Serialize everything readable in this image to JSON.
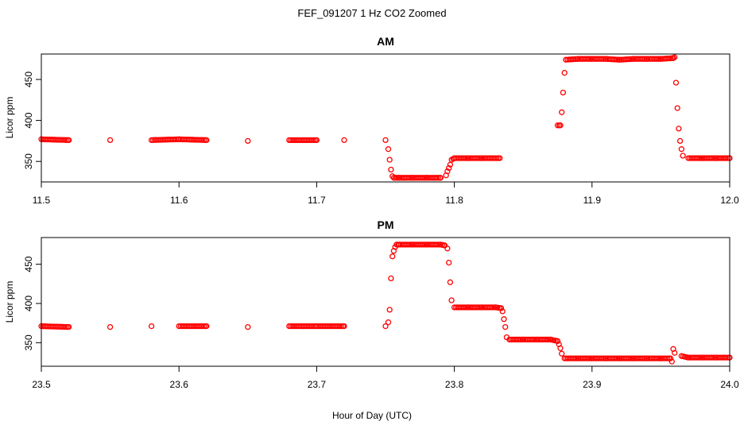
{
  "figure": {
    "title": "FEF_091207  1 Hz CO2 Zoomed",
    "xlabel": "Hour of Day (UTC)"
  },
  "chart_data": [
    {
      "type": "scatter",
      "title": "AM",
      "xlabel": "Hour of Day (UTC)",
      "ylabel": "Licor ppm",
      "xlim": [
        11.5,
        12.0
      ],
      "ylim": [
        325,
        481
      ],
      "x_ticks": [
        "11.5",
        "11.6",
        "11.7",
        "11.8",
        "11.9",
        "12.0"
      ],
      "y_ticks": [
        "350",
        "400",
        "450"
      ],
      "marker": "open-circle",
      "color": "#ff0000",
      "grid": false,
      "series": [
        {
          "x": [
            11.5,
            11.52,
            11.55,
            11.58,
            11.6,
            11.62,
            11.65,
            11.68,
            11.7,
            11.72,
            11.75,
            11.752,
            11.753,
            11.754,
            11.755,
            11.756,
            11.76,
            11.77,
            11.78,
            11.79,
            11.794,
            11.795,
            11.796,
            11.797,
            11.798,
            11.8,
            11.81,
            11.82,
            11.833,
            11.875,
            11.877,
            11.878,
            11.879,
            11.88,
            11.881,
            11.89,
            11.9,
            11.91,
            11.92,
            11.93,
            11.94,
            11.95,
            11.959,
            11.96,
            11.961,
            11.962,
            11.963,
            11.964,
            11.965,
            11.966,
            11.97,
            11.98,
            11.99,
            12.0
          ],
          "y": [
            377,
            376,
            376,
            376,
            377,
            376,
            375,
            376,
            376,
            376,
            376,
            365,
            352,
            340,
            332,
            330,
            330,
            330,
            330,
            330,
            333,
            338,
            342,
            346,
            352,
            354,
            354,
            354,
            354,
            394,
            394,
            410,
            434,
            458,
            474,
            475,
            475,
            475,
            474,
            475,
            475,
            475,
            476,
            477,
            446,
            415,
            390,
            375,
            365,
            357,
            354,
            354,
            354,
            354
          ]
        }
      ]
    },
    {
      "type": "scatter",
      "title": "PM",
      "xlabel": "Hour of Day (UTC)",
      "ylabel": "Licor ppm",
      "xlim": [
        23.5,
        24.0
      ],
      "ylim": [
        320,
        484
      ],
      "x_ticks": [
        "23.5",
        "23.6",
        "23.7",
        "23.8",
        "23.9",
        "24.0"
      ],
      "y_ticks": [
        "350",
        "400",
        "450"
      ],
      "marker": "open-circle",
      "color": "#ff0000",
      "grid": false,
      "series": [
        {
          "x": [
            23.5,
            23.52,
            23.55,
            23.58,
            23.6,
            23.62,
            23.65,
            23.68,
            23.7,
            23.72,
            23.75,
            23.752,
            23.753,
            23.754,
            23.755,
            23.756,
            23.757,
            23.758,
            23.76,
            23.77,
            23.78,
            23.79,
            23.793,
            23.795,
            23.796,
            23.797,
            23.798,
            23.8,
            23.81,
            23.82,
            23.83,
            23.834,
            23.835,
            23.836,
            23.837,
            23.838,
            23.84,
            23.85,
            23.86,
            23.87,
            23.875,
            23.876,
            23.877,
            23.878,
            23.88,
            23.89,
            23.9,
            23.91,
            23.92,
            23.93,
            23.94,
            23.95,
            23.957,
            23.958,
            23.959,
            23.96,
            23.965,
            23.97,
            23.98,
            23.99,
            24.0
          ],
          "y": [
            371,
            370,
            370,
            371,
            371,
            371,
            370,
            371,
            371,
            371,
            371,
            376,
            392,
            432,
            460,
            467,
            472,
            475,
            475,
            475,
            475,
            475,
            474,
            470,
            452,
            427,
            404,
            395,
            395,
            395,
            395,
            394,
            390,
            380,
            370,
            357,
            354,
            354,
            354,
            354,
            352,
            348,
            343,
            336,
            330,
            330,
            330,
            330,
            330,
            330,
            330,
            330,
            330,
            326,
            342,
            337,
            333,
            331,
            331,
            331,
            331
          ]
        }
      ]
    }
  ]
}
